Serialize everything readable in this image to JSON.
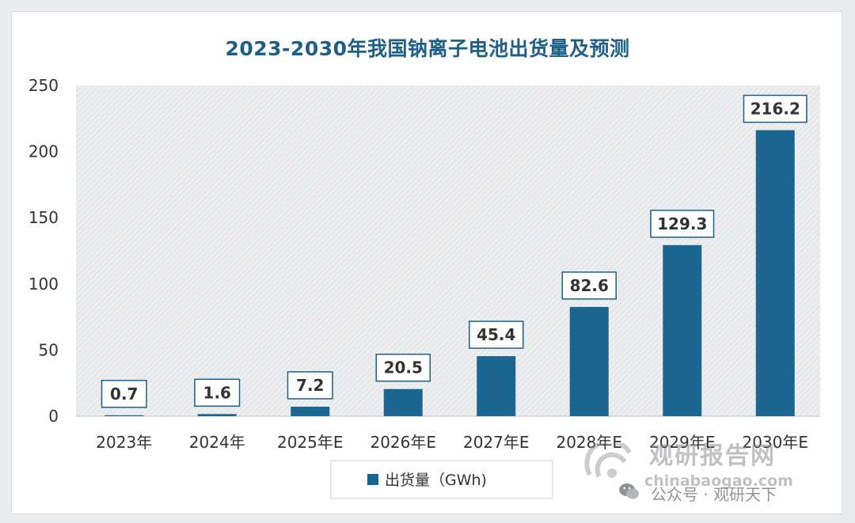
{
  "chart_data": {
    "type": "bar",
    "title": "2023-2030年我国钠离子电池出货量及预测",
    "categories": [
      "2023年",
      "2024年",
      "2025年E",
      "2026年E",
      "2027年E",
      "2028年E",
      "2029年E",
      "2030年E"
    ],
    "series": [
      {
        "name": "出货量（GWh)",
        "values": [
          0.7,
          1.6,
          7.2,
          20.5,
          45.4,
          82.6,
          129.3,
          216.2
        ]
      }
    ],
    "data_labels": [
      "0.7",
      "1.6",
      "7.2",
      "20.5",
      "45.4",
      "82.6",
      "129.3",
      "216.2"
    ],
    "ylim": [
      0,
      250
    ],
    "yticks": [
      "0",
      "50",
      "100",
      "150",
      "200",
      "250"
    ],
    "grid": false,
    "legend_position": "bottom",
    "colors": {
      "bar": "#1a6690",
      "title": "#1d5f86",
      "label_border": "#1d5f86",
      "plot_bg": "#e4e6e8"
    }
  },
  "watermark": {
    "brand": "观研报告网",
    "site": "chinabaogao.com",
    "publisher": "公众号 · 观研天下",
    "icons": [
      "guanyan-logo-icon",
      "wechat-icon"
    ]
  }
}
